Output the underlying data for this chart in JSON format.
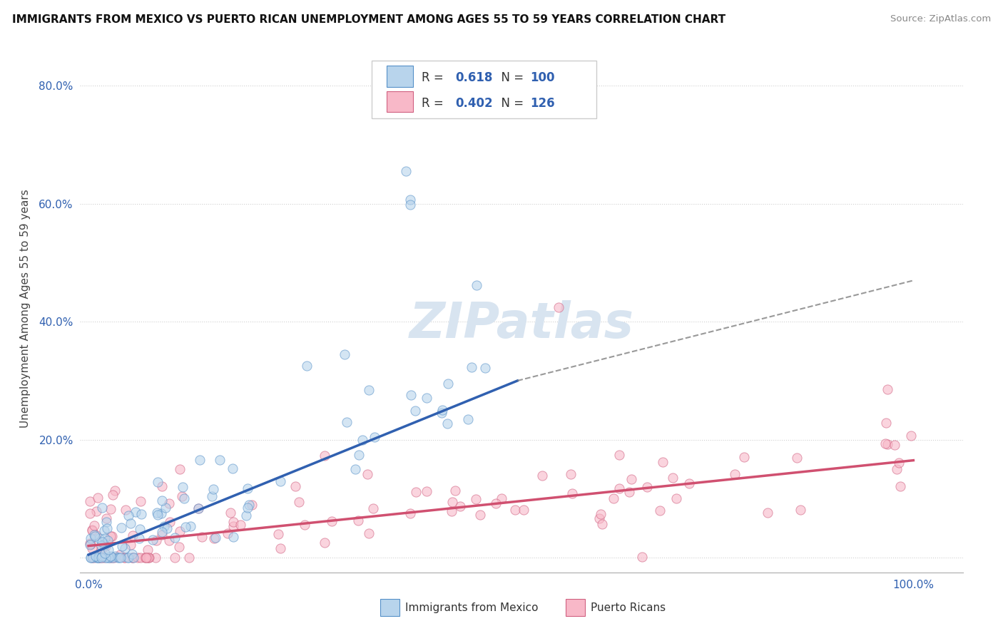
{
  "title": "IMMIGRANTS FROM MEXICO VS PUERTO RICAN UNEMPLOYMENT AMONG AGES 55 TO 59 YEARS CORRELATION CHART",
  "source": "Source: ZipAtlas.com",
  "ylabel": "Unemployment Among Ages 55 to 59 years",
  "y_ticks": [
    0.0,
    0.2,
    0.4,
    0.6,
    0.8
  ],
  "y_tick_labels": [
    "",
    "20.0%",
    "40.0%",
    "60.0%",
    "80.0%"
  ],
  "x_tick_labels": [
    "0.0%",
    "100.0%"
  ],
  "blue_label": "Immigrants from Mexico",
  "pink_label": "Puerto Ricans",
  "blue_R": "0.618",
  "blue_N": "100",
  "pink_R": "0.402",
  "pink_N": "126",
  "blue_fill": "#b8d4ec",
  "blue_edge": "#5590c8",
  "blue_line": "#3060b0",
  "pink_fill": "#f8b8c8",
  "pink_edge": "#d06080",
  "pink_line": "#d05070",
  "legend_text_color": "#3060b0",
  "tick_color": "#3060b0",
  "title_color": "#111111",
  "source_color": "#888888",
  "ylabel_color": "#444444",
  "grid_color": "#d0d0d0",
  "watermark_color": "#d8e4f0",
  "background": "#ffffff",
  "xlim": [
    -0.01,
    1.06
  ],
  "ylim": [
    -0.025,
    0.87
  ],
  "blue_line_x_solid_end": 0.52,
  "blue_line_y_start": 0.005,
  "blue_line_y_at_solid_end": 0.3,
  "blue_line_y_at_end": 0.47,
  "pink_line_y_start": 0.02,
  "pink_line_y_end": 0.165
}
